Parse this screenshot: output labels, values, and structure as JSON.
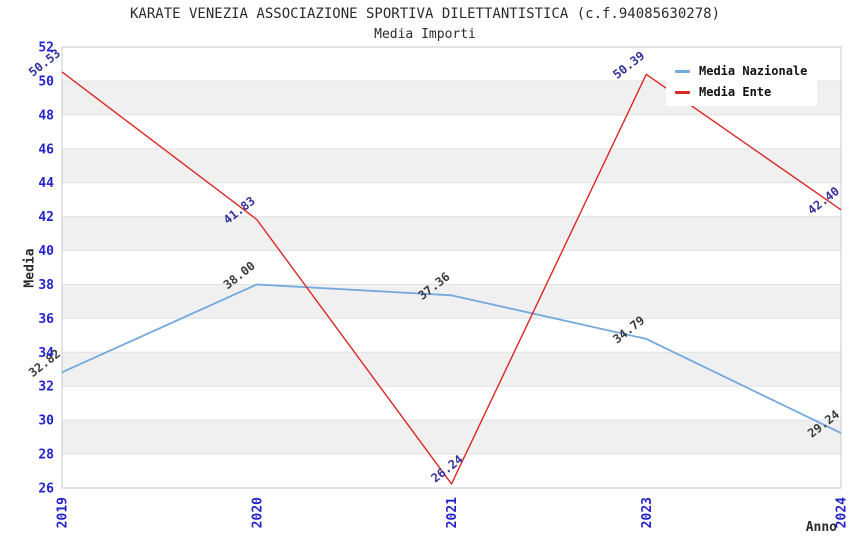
{
  "header": {
    "title": "KARATE VENEZIA ASSOCIAZIONE SPORTIVA DILETTANTISTICA (c.f.94085630278)",
    "subtitle": "Media Importi"
  },
  "chart_data": {
    "type": "line",
    "title": "KARATE VENEZIA ASSOCIAZIONE SPORTIVA DILETTANTISTICA (c.f.94085630278)",
    "subtitle": "Media Importi",
    "xlabel": "Anno",
    "ylabel": "Media",
    "categories": [
      "2019",
      "2020",
      "2021",
      "2023",
      "2024"
    ],
    "series": [
      {
        "name": "Media Nazionale",
        "color": "#74a9dc",
        "values": [
          32.82,
          38.0,
          37.36,
          34.79,
          29.24
        ],
        "labels": [
          "32.82",
          "38.00",
          "37.36",
          "34.79",
          "29.24"
        ],
        "label_color": "#3c3c3c",
        "line_width": 1.8
      },
      {
        "name": "Media Ente",
        "color": "#dd2626",
        "values": [
          50.53,
          41.83,
          26.24,
          50.39,
          42.4
        ],
        "labels": [
          "50.53",
          "41.83",
          "26.24",
          "50.39",
          "42.40"
        ],
        "label_color": "#333399",
        "line_width": 1.4
      }
    ],
    "ylim": [
      26,
      52
    ],
    "ytick_step": 2,
    "grid": true,
    "legend_position": "top-right",
    "colors": {
      "tick_label": "#2323cc",
      "band_fill": "#f0f0f0",
      "gridline": "#e3e3e3",
      "plot_border": "#c9c9c9"
    }
  }
}
